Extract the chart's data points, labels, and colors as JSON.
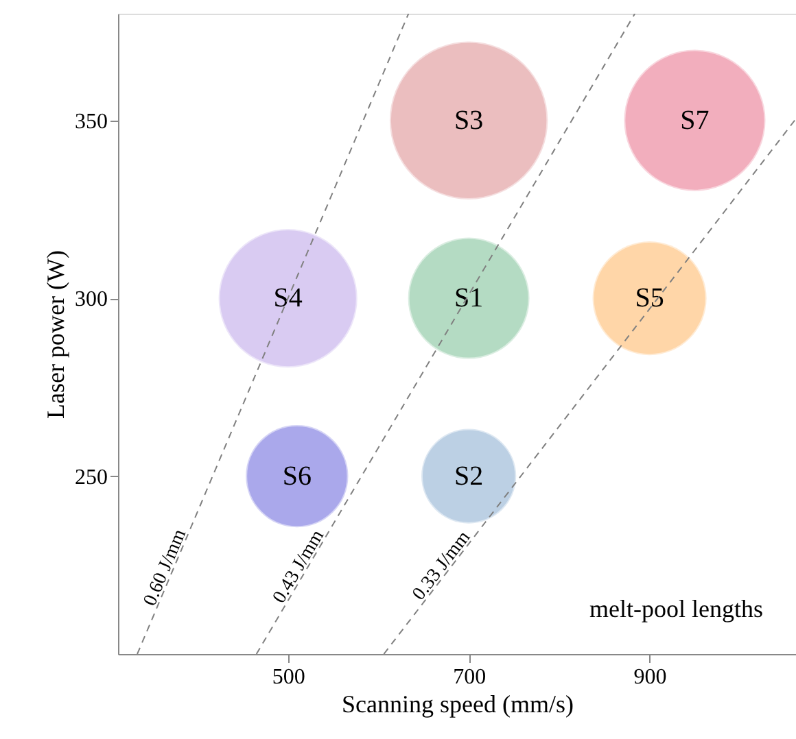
{
  "chart_data": {
    "type": "bubble",
    "xlabel": "Scanning speed (mm/s)",
    "ylabel": "Laser power (W)",
    "xlim": [
      312,
      1062
    ],
    "ylim": [
      200,
      380
    ],
    "xticks": [
      500,
      700,
      900
    ],
    "yticks": [
      250,
      300,
      350
    ],
    "grid": false,
    "annotations": [
      "melt-pool lengths"
    ],
    "series": [
      {
        "name": "S3",
        "color": "#e8b3b5",
        "x": [
          700
        ],
        "values": [
          350
        ],
        "sizes": [
          1
        ]
      },
      {
        "name": "S7",
        "color": "#f0a0b2",
        "x": [
          950
        ],
        "values": [
          350
        ],
        "sizes": [
          0.8
        ]
      },
      {
        "name": "S4",
        "color": "#d3c3f0",
        "x": [
          500
        ],
        "values": [
          300
        ],
        "sizes": [
          0.77
        ]
      },
      {
        "name": "S1",
        "color": "#a8d5b9",
        "x": [
          700
        ],
        "values": [
          300
        ],
        "sizes": [
          0.59
        ]
      },
      {
        "name": "S5",
        "color": "#ffd09a",
        "x": [
          900
        ],
        "values": [
          300
        ],
        "sizes": [
          0.52
        ]
      },
      {
        "name": "S6",
        "color": "#9c9ae8",
        "x": [
          510
        ],
        "values": [
          250
        ],
        "sizes": [
          0.42
        ]
      },
      {
        "name": "S2",
        "color": "#b1c8e0",
        "x": [
          700
        ],
        "values": [
          250
        ],
        "sizes": [
          0.36
        ]
      },
      {
        "name": "0.60 J/mm",
        "type": "line",
        "line_style": "dashed",
        "color": "#808080",
        "x": [
          333.3,
          633.3
        ],
        "values": [
          200,
          380
        ]
      },
      {
        "name": "0.43 J/mm",
        "type": "line",
        "line_style": "dashed",
        "color": "#808080",
        "x": [
          465.1,
          883.7
        ],
        "values": [
          200,
          380
        ]
      },
      {
        "name": "0.33 J/mm",
        "type": "line",
        "line_style": "dashed",
        "color": "#808080",
        "x": [
          606.1,
          1062
        ],
        "values": [
          200,
          350.5
        ]
      }
    ]
  }
}
